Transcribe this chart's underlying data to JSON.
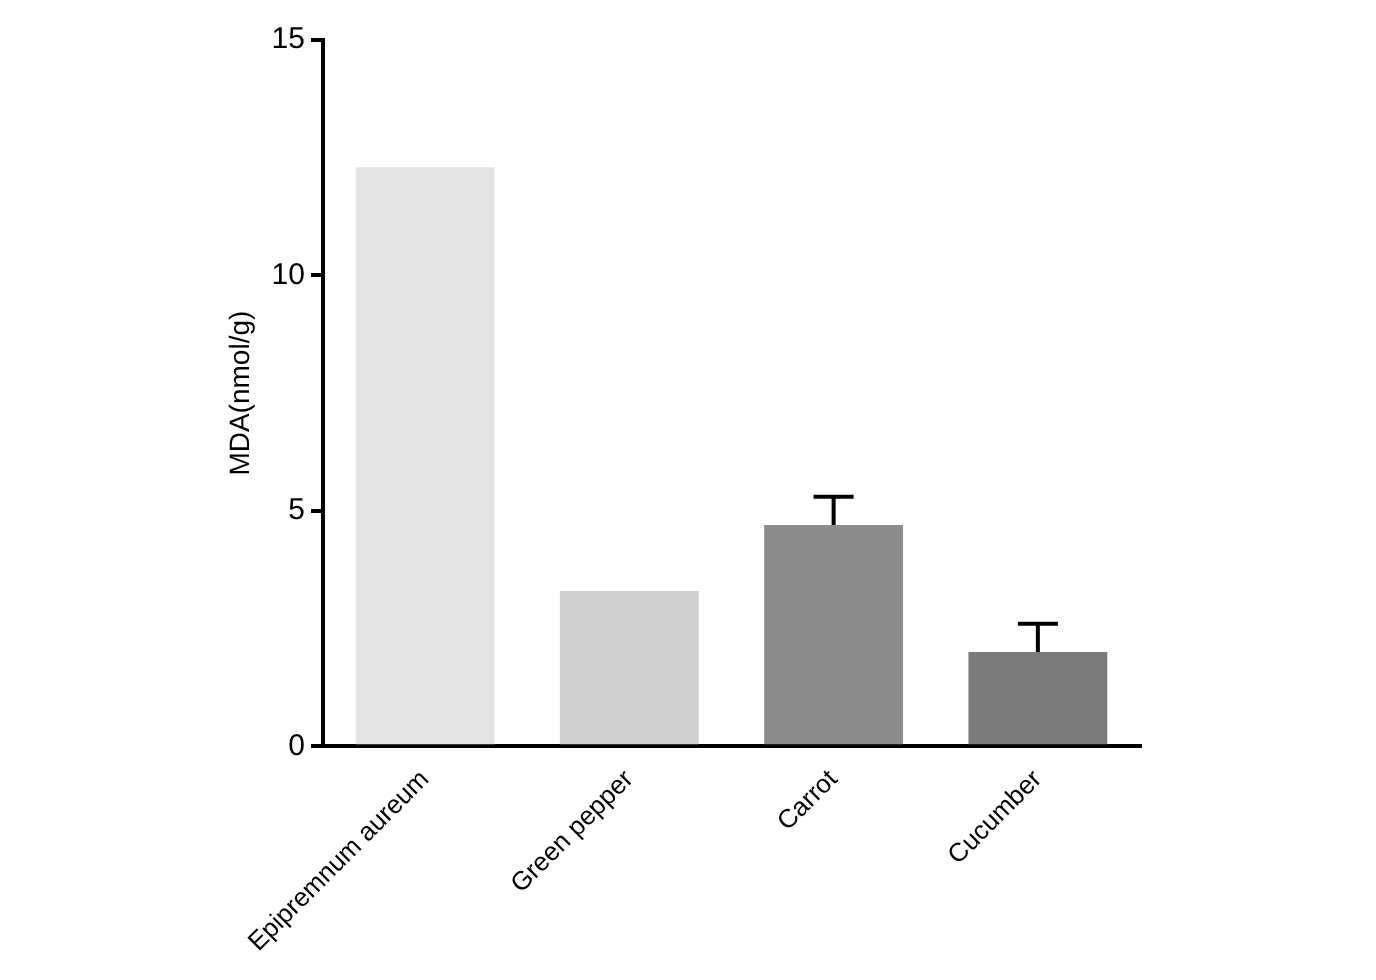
{
  "chart_data": {
    "type": "bar",
    "categories": [
      "Epipremnum aureum",
      "Green pepper",
      "Carrot",
      "Cucumber"
    ],
    "values": [
      12.3,
      3.3,
      4.7,
      2.0
    ],
    "errors": [
      null,
      null,
      0.6,
      0.6
    ],
    "colors": [
      "#e4e4e4",
      "#cfcfcf",
      "#8c8c8c",
      "#7a7a7a"
    ],
    "ylabel": "MDA(nmol/g)",
    "ylim": [
      0,
      15
    ],
    "yticks": [
      0,
      5,
      10,
      15
    ],
    "grid": false,
    "legend": false
  }
}
